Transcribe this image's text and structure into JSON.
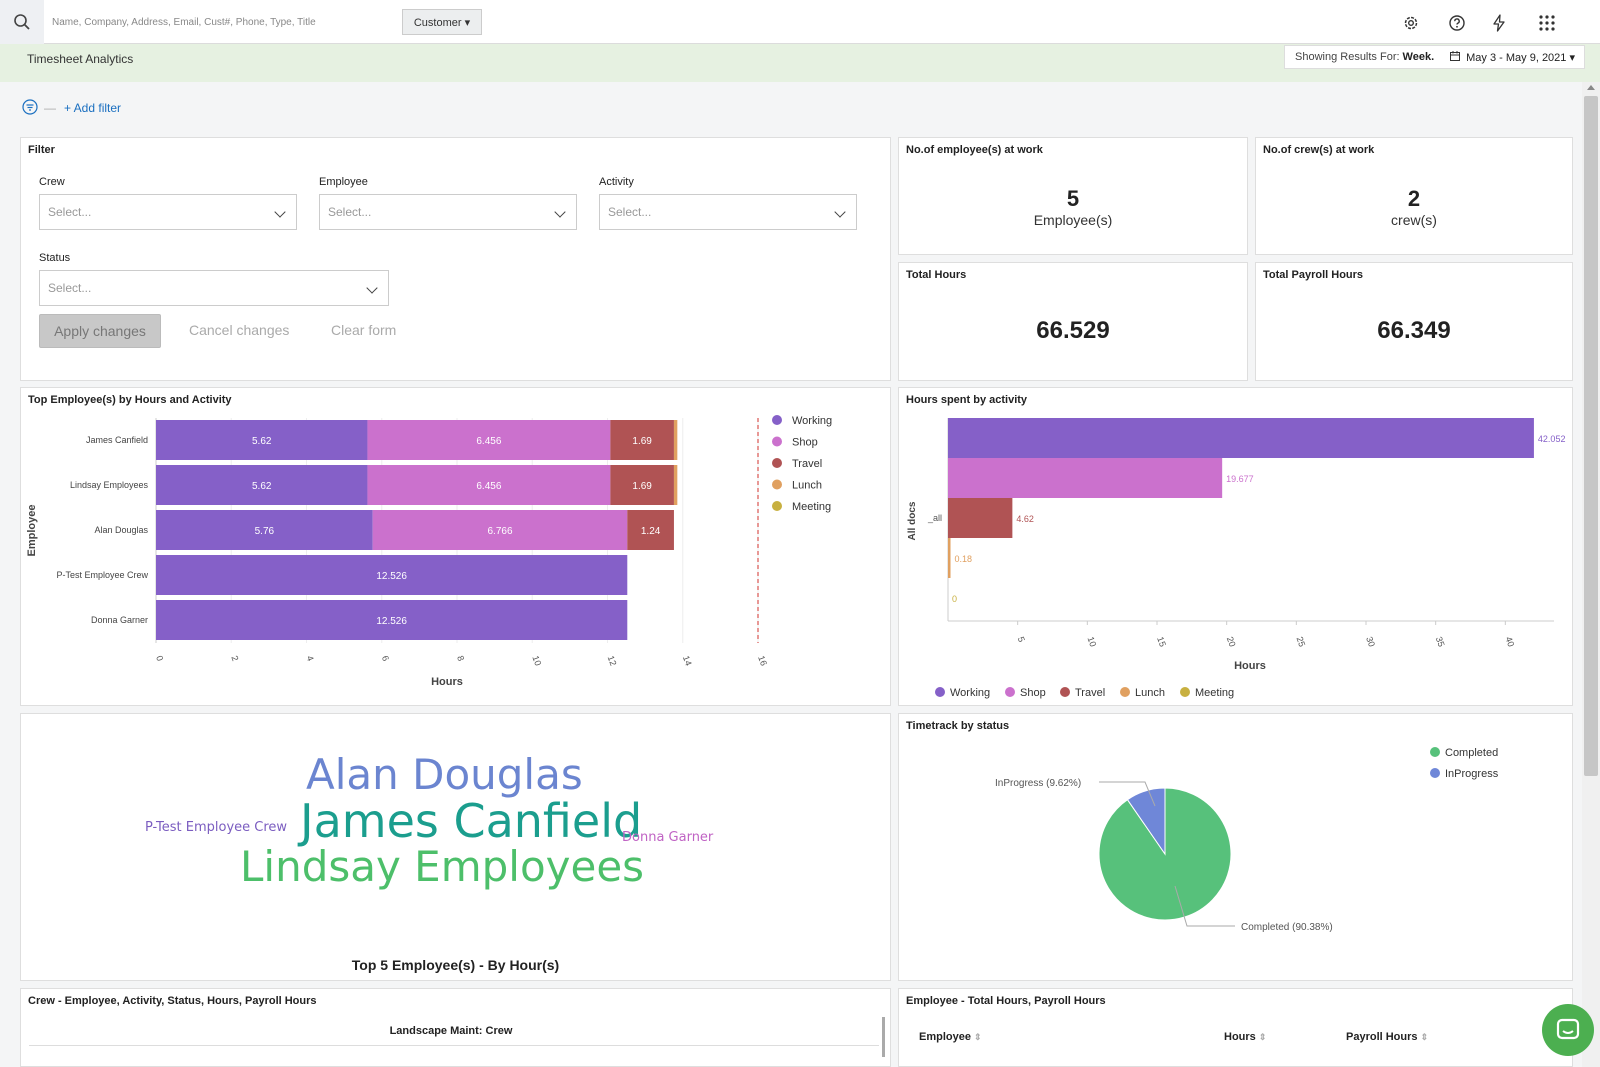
{
  "search": {
    "placeholder": "Name, Company, Address, Email, Cust#, Phone, Type, Title",
    "type_label": "Customer ▾"
  },
  "header": {
    "title": "Timesheet Analytics",
    "results_prefix": "Showing Results For:",
    "period": "Week.",
    "date_range": "May 3 - May 9, 2021 ▾"
  },
  "filters": {
    "add_label": "+ Add filter"
  },
  "filter_panel": {
    "title": "Filter",
    "crew_label": "Crew",
    "employee_label": "Employee",
    "activity_label": "Activity",
    "status_label": "Status",
    "placeholder": "Select...",
    "apply": "Apply changes",
    "cancel": "Cancel changes",
    "clear": "Clear form"
  },
  "metrics": {
    "employees": {
      "title": "No.of employee(s) at work",
      "value": "5",
      "unit": "Employee(s)"
    },
    "crews": {
      "title": "No.of crew(s) at work",
      "value": "2",
      "unit": "crew(s)"
    },
    "total_hours": {
      "title": "Total Hours",
      "value": "66.529"
    },
    "payroll_hours": {
      "title": "Total Payroll Hours",
      "value": "66.349"
    }
  },
  "colors": {
    "Working": "#8560c8",
    "Shop": "#cb71cd",
    "Travel": "#b05354",
    "Lunch": "#e0a060",
    "Meeting": "#c8b040",
    "Completed": "#57c17b",
    "InProgress": "#6f87d8"
  },
  "chart_data": [
    {
      "type": "bar",
      "orientation": "horizontal-stacked",
      "title": "Top Employee(s) by Hours and Activity",
      "xlabel": "Hours",
      "ylabel": "Employee",
      "categories": [
        "James Canfield",
        "Lindsay Employees",
        "Alan Douglas",
        "P-Test Employee Crew",
        "Donna Garner"
      ],
      "series": [
        {
          "name": "Working",
          "values": [
            5.62,
            5.62,
            5.76,
            12.526,
            12.526
          ]
        },
        {
          "name": "Shop",
          "values": [
            6.456,
            6.456,
            6.766,
            0,
            0
          ]
        },
        {
          "name": "Travel",
          "values": [
            1.69,
            1.69,
            1.24,
            0,
            0
          ]
        },
        {
          "name": "Lunch",
          "values": [
            0.09,
            0.09,
            0,
            0,
            0
          ]
        },
        {
          "name": "Meeting",
          "values": [
            0,
            0,
            0,
            0,
            0
          ]
        }
      ],
      "xlim": [
        0,
        16
      ],
      "xticks": [
        "0",
        "2",
        "4",
        "6",
        "8",
        "10",
        "12",
        "14",
        "16"
      ],
      "legend": "right"
    },
    {
      "type": "bar",
      "orientation": "horizontal",
      "title": "Hours spent by activity",
      "xlabel": "Hours",
      "ylabel": "All docs",
      "ytick": "_all",
      "series": [
        {
          "name": "Working",
          "value": 42.052,
          "label": "42.052"
        },
        {
          "name": "Shop",
          "value": 19.677,
          "label": "19.677"
        },
        {
          "name": "Travel",
          "value": 4.62,
          "label": "4.62"
        },
        {
          "name": "Lunch",
          "value": 0.18,
          "label": "0.18"
        },
        {
          "name": "Meeting",
          "value": 0,
          "label": "0"
        }
      ],
      "xlim": [
        0,
        45
      ],
      "xticks": [
        "5",
        "10",
        "15",
        "20",
        "25",
        "30",
        "35",
        "40"
      ],
      "legend": "bottom"
    },
    {
      "type": "pie",
      "title": "Timetrack by status",
      "slices": [
        {
          "name": "Completed",
          "value": 90.38,
          "label": "Completed (90.38%)"
        },
        {
          "name": "InProgress",
          "value": 9.62,
          "label": "InProgress (9.62%)"
        }
      ],
      "legend": "top-right"
    }
  ],
  "wordcloud": {
    "title": "Top 5 Employee(s) - By Hour(s)",
    "words": [
      {
        "text": "Alan Douglas",
        "color": "#6b85d0"
      },
      {
        "text": "James Canfield",
        "color": "#1b9e8e"
      },
      {
        "text": "Lindsay Employees",
        "color": "#4dbf6a"
      },
      {
        "text": "P-Test Employee Crew",
        "color": "#7b5dc0"
      },
      {
        "text": "Donna Garner",
        "color": "#c063c4"
      }
    ]
  },
  "tables": {
    "crew": {
      "title": "Crew - Employee, Activity, Status, Hours, Payroll Hours",
      "group": "Landscape Maint: Crew"
    },
    "employee": {
      "title": "Employee - Total Hours, Payroll Hours",
      "columns": [
        "Employee",
        "Hours",
        "Payroll Hours"
      ]
    }
  }
}
